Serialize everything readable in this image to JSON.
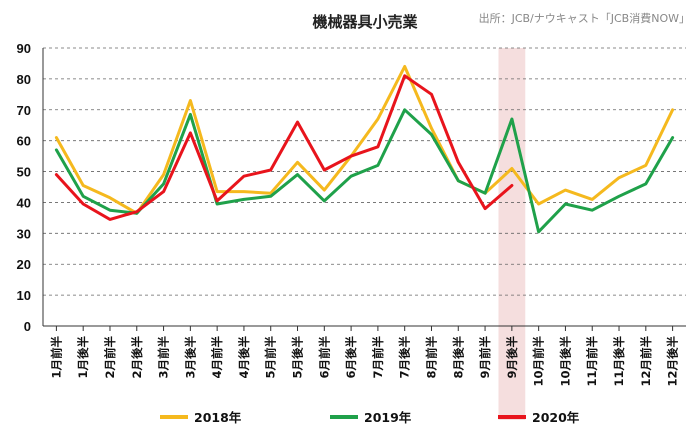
{
  "chart_data": {
    "type": "line",
    "title": "機械器具小売業",
    "source": "出所：JCB/ナウキャスト「JCB消費NOW」",
    "ylim": [
      0,
      90
    ],
    "yticks": [
      0,
      10,
      20,
      30,
      40,
      50,
      60,
      70,
      80,
      90
    ],
    "grid": true,
    "legend_position": "bottom",
    "highlight_category": "9月後半",
    "colors": {
      "highlight": "#f5dede"
    },
    "categories": [
      "1月前半",
      "1月後半",
      "2月前半",
      "2月後半",
      "3月前半",
      "3月後半",
      "4月前半",
      "4月後半",
      "5月前半",
      "5月後半",
      "6月前半",
      "6月後半",
      "7月前半",
      "7月後半",
      "8月前半",
      "8月後半",
      "9月前半",
      "9月後半",
      "10月前半",
      "10月後半",
      "11月前半",
      "11月後半",
      "12月前半",
      "12月後半"
    ],
    "series": [
      {
        "name": "2018年",
        "color": "#f5b91e",
        "values": [
          61,
          45.5,
          41.5,
          36.5,
          49,
          73,
          43.5,
          43.5,
          43,
          53,
          44,
          55,
          67,
          84,
          64,
          47,
          43,
          51,
          39.5,
          44,
          41,
          48,
          52,
          70
        ]
      },
      {
        "name": "2019年",
        "color": "#1fa14a",
        "values": [
          57,
          42,
          37.5,
          36.5,
          46,
          68.5,
          39.5,
          41,
          42,
          49,
          40.5,
          48.5,
          52,
          70,
          62,
          47,
          43,
          67,
          30.5,
          39.5,
          37.5,
          42,
          46,
          61
        ]
      },
      {
        "name": "2020年",
        "color": "#e8141c",
        "values": [
          49,
          39.5,
          34.5,
          37,
          43.5,
          62.5,
          40.5,
          48.5,
          50.5,
          66,
          50.5,
          55,
          58,
          81,
          75,
          53,
          38,
          45.5,
          null,
          null,
          null,
          null,
          null,
          null
        ]
      }
    ]
  }
}
